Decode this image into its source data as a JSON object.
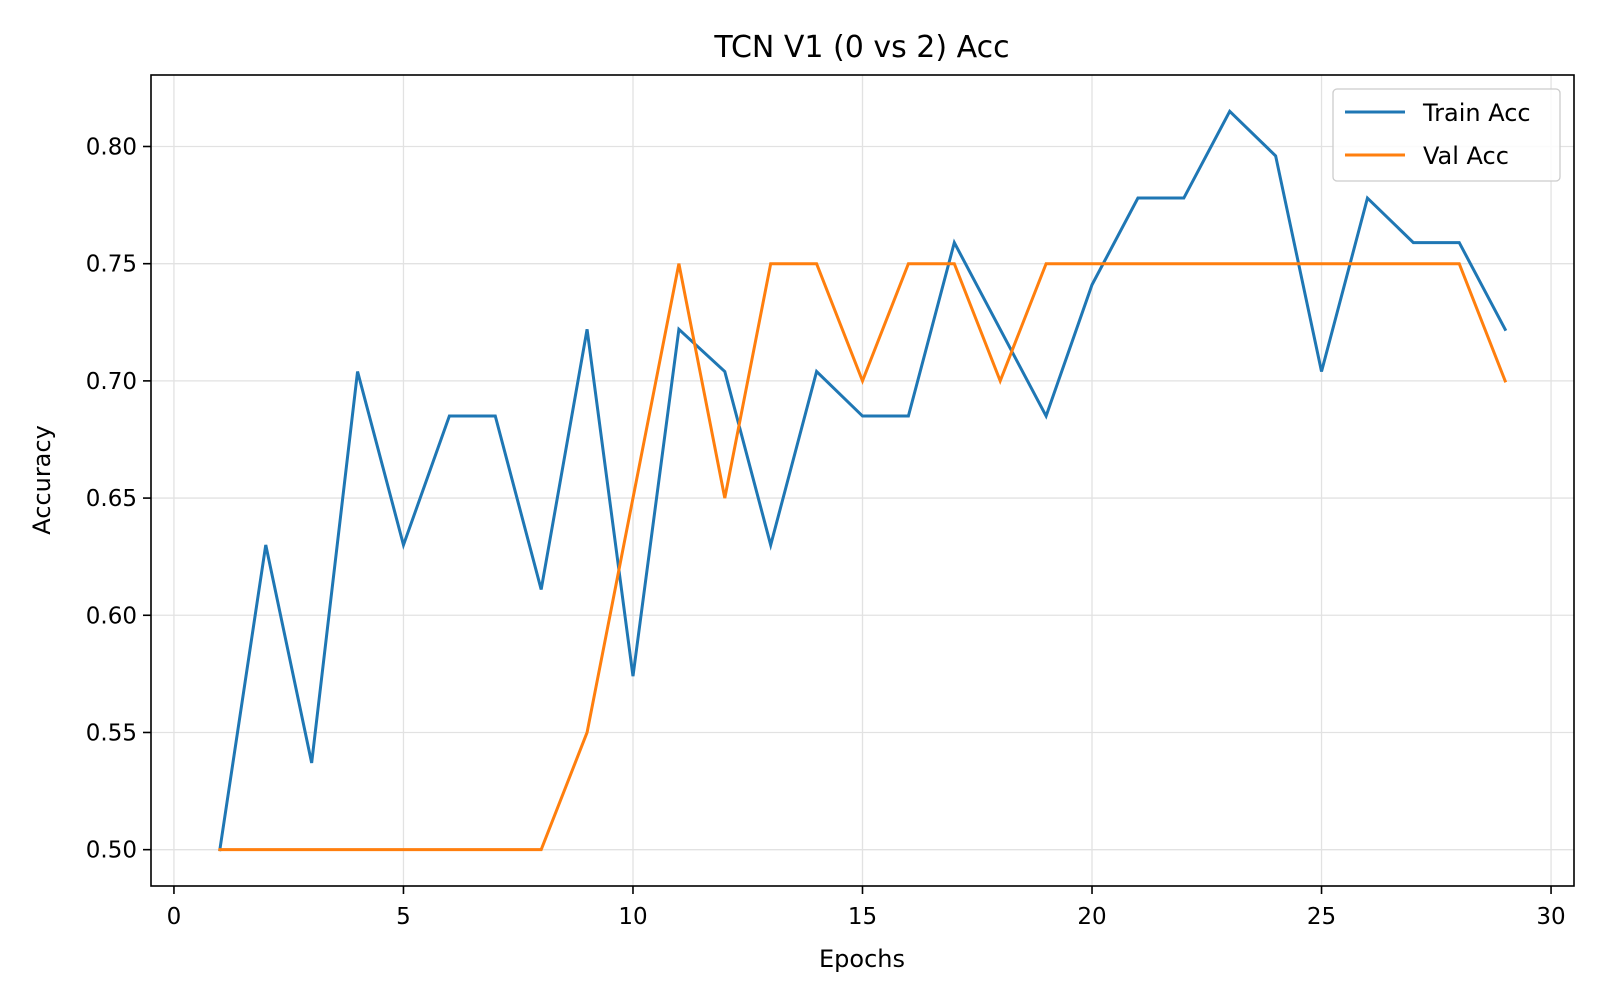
{
  "chart_data": {
    "type": "line",
    "title": "TCN V1 (0 vs 2) Acc",
    "xlabel": "Epochs",
    "ylabel": "Accuracy",
    "xlim": [
      -0.5,
      30.5
    ],
    "ylim": [
      0.4845,
      0.8305
    ],
    "xticks": [
      0,
      5,
      10,
      15,
      20,
      25,
      30
    ],
    "xtick_labels": [
      "0",
      "5",
      "10",
      "15",
      "20",
      "25",
      "30"
    ],
    "yticks": [
      0.5,
      0.55,
      0.6,
      0.65,
      0.7,
      0.75,
      0.8
    ],
    "ytick_labels": [
      "0.50",
      "0.55",
      "0.60",
      "0.65",
      "0.70",
      "0.75",
      "0.80"
    ],
    "grid": true,
    "legend_position": "top-right",
    "x": [
      1,
      2,
      3,
      4,
      5,
      6,
      7,
      8,
      9,
      10,
      11,
      12,
      13,
      14,
      15,
      16,
      17,
      18,
      19,
      20,
      21,
      22,
      23,
      24,
      25,
      26,
      27,
      28,
      29
    ],
    "series": [
      {
        "name": "Train Acc",
        "color": "#1f77b4",
        "values": [
          0.5,
          0.63,
          0.537,
          0.704,
          0.63,
          0.685,
          0.685,
          0.611,
          0.722,
          0.574,
          0.722,
          0.704,
          0.63,
          0.704,
          0.685,
          0.685,
          0.759,
          0.722,
          0.685,
          0.741,
          0.778,
          0.778,
          0.815,
          0.796,
          0.704,
          0.778,
          0.759,
          0.759,
          0.722
        ]
      },
      {
        "name": "Val Acc",
        "color": "#ff7f0e",
        "values": [
          0.5,
          0.5,
          0.5,
          0.5,
          0.5,
          0.5,
          0.5,
          0.5,
          0.55,
          0.65,
          0.75,
          0.65,
          0.75,
          0.75,
          0.7,
          0.75,
          0.75,
          0.7,
          0.75,
          0.75,
          0.75,
          0.75,
          0.75,
          0.75,
          0.75,
          0.75,
          0.75,
          0.75,
          0.7
        ]
      }
    ]
  }
}
